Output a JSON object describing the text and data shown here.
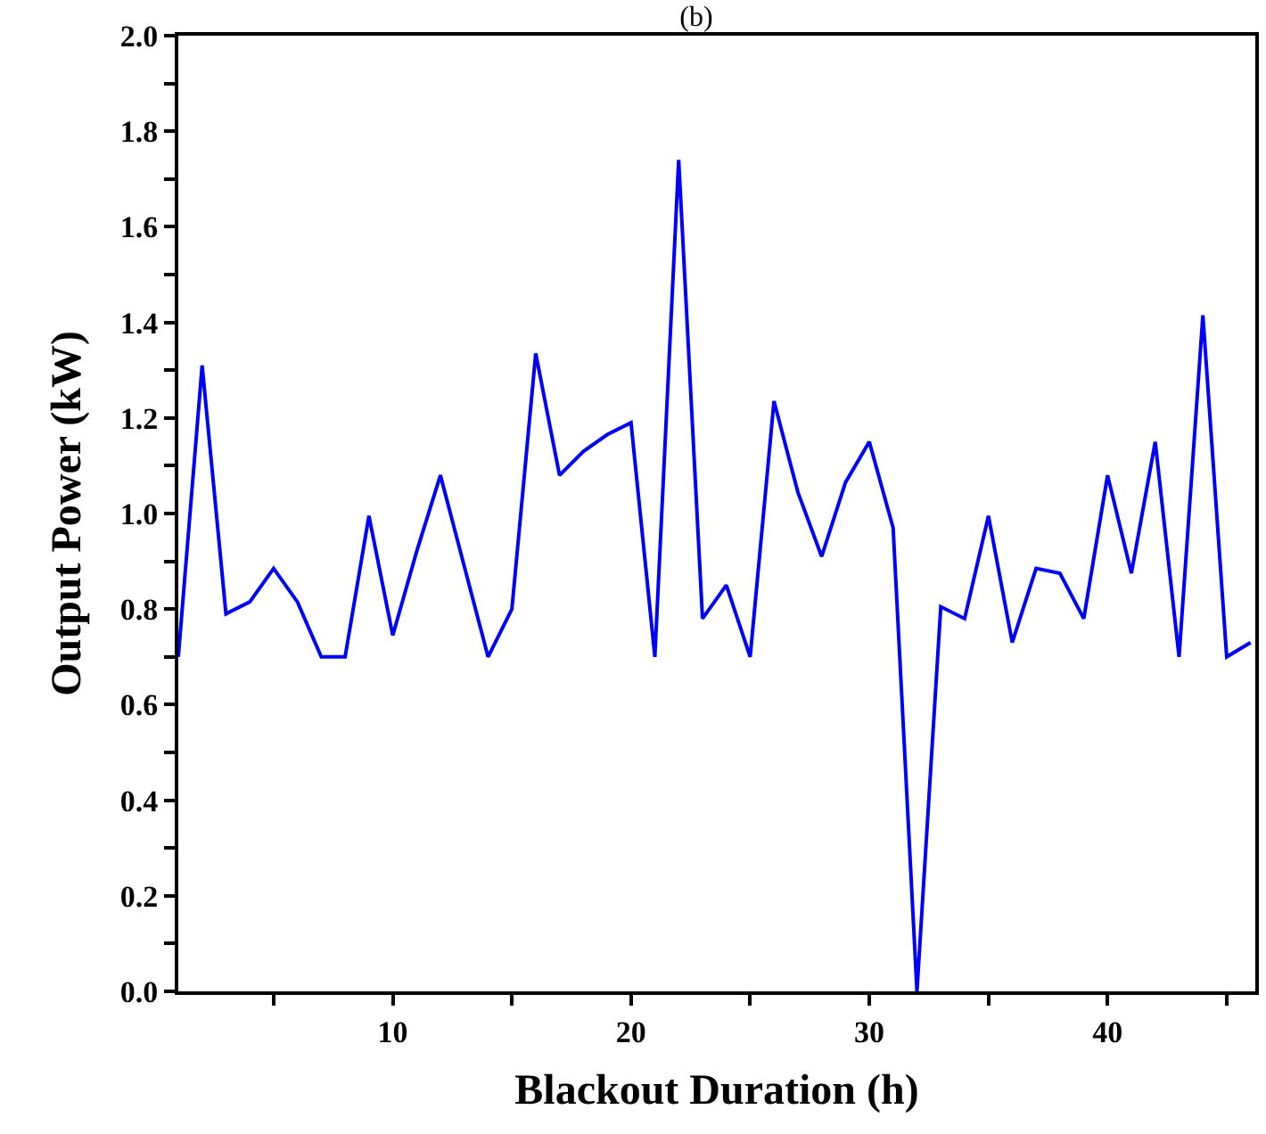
{
  "chart_data": {
    "type": "line",
    "title": "(b)",
    "xlabel": "Blackout Duration (h)",
    "ylabel": "Output Power (kW)",
    "x": [
      1,
      2,
      3,
      4,
      5,
      6,
      7,
      8,
      9,
      10,
      11,
      12,
      13,
      14,
      15,
      16,
      17,
      18,
      19,
      20,
      21,
      22,
      23,
      24,
      25,
      26,
      27,
      28,
      29,
      30,
      31,
      32,
      33,
      34,
      35,
      36,
      37,
      38,
      39,
      40,
      41,
      42,
      43,
      44,
      45,
      46
    ],
    "series": [
      {
        "color": "#0000ff",
        "values": [
          0.7,
          1.31,
          0.79,
          0.815,
          0.885,
          0.815,
          0.7,
          0.7,
          0.995,
          0.745,
          0.92,
          1.08,
          0.89,
          0.7,
          0.8,
          1.335,
          1.08,
          1.13,
          1.165,
          1.19,
          0.7,
          1.74,
          0.78,
          0.85,
          0.7,
          1.235,
          1.045,
          0.91,
          1.065,
          1.15,
          0.97,
          0.0,
          0.805,
          0.78,
          0.995,
          0.73,
          0.885,
          0.875,
          0.78,
          1.08,
          0.875,
          1.15,
          0.7,
          1.415,
          0.7,
          0.73
        ]
      }
    ],
    "xlim": [
      1,
      46.2
    ],
    "xticks": [
      {
        "value": 5,
        "label": null
      },
      10,
      {
        "value": 15,
        "label": null
      },
      20,
      {
        "value": 25,
        "label": null
      },
      30,
      {
        "value": 35,
        "label": null
      },
      40,
      {
        "value": 45,
        "label": null
      }
    ],
    "ylim": [
      0,
      2
    ],
    "yticks": [
      {
        "value": 0,
        "label": "0.0"
      },
      {
        "value": 0.1,
        "label": null
      },
      {
        "value": 0.2,
        "label": "0.2"
      },
      {
        "value": 0.3,
        "label": null
      },
      {
        "value": 0.4,
        "label": "0.4"
      },
      {
        "value": 0.5,
        "label": null
      },
      {
        "value": 0.6,
        "label": "0.6"
      },
      {
        "value": 0.7,
        "label": null
      },
      {
        "value": 0.8,
        "label": "0.8"
      },
      {
        "value": 0.9,
        "label": null
      },
      {
        "value": 1.0,
        "label": "1.0"
      },
      {
        "value": 1.1,
        "label": null
      },
      {
        "value": 1.2,
        "label": "1.2"
      },
      {
        "value": 1.3,
        "label": null
      },
      {
        "value": 1.4,
        "label": "1.4"
      },
      {
        "value": 1.5,
        "label": null
      },
      {
        "value": 1.6,
        "label": "1.6"
      },
      {
        "value": 1.7,
        "label": null
      },
      {
        "value": 1.8,
        "label": "1.8"
      },
      {
        "value": 1.9,
        "label": null
      },
      {
        "value": 2.0,
        "label": "2.0"
      }
    ],
    "legend": false,
    "marker": "none",
    "line_style": "solid"
  }
}
